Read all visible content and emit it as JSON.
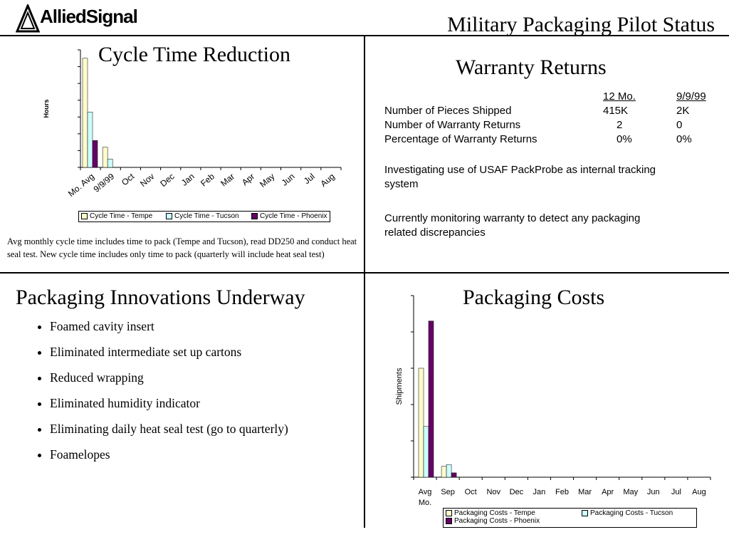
{
  "header": {
    "logo_text": "AlliedSignal",
    "title": "Military Packaging Pilot Status"
  },
  "colors": {
    "tempe": "#fffccc",
    "tucson": "#ccffff",
    "phoenix": "#660066",
    "rule": "#000000"
  },
  "cycle_panel": {
    "title": "Cycle Time Reduction",
    "note": "Avg monthly cycle time includes time to pack (Tempe and Tucson), read DD250 and conduct heat seal test.  New cycle time includes only time to pack (quarterly will include heat seal test)"
  },
  "warranty": {
    "title": "Warranty Returns",
    "col_headers": [
      "12 Mo.",
      "9/9/99"
    ],
    "rows": [
      {
        "label": "Number of Pieces Shipped",
        "v1": "415K",
        "v2": "2K"
      },
      {
        "label": "Number of Warranty Returns",
        "v1": "2",
        "v2": "0"
      },
      {
        "label": "Percentage of Warranty Returns",
        "v1": "0%",
        "v2": "0%"
      }
    ],
    "para1": "Investigating use of USAF PackProbe as internal tracking system",
    "para2": "Currently monitoring warranty to detect any packaging related discrepancies"
  },
  "innovations": {
    "title": "Packaging Innovations Underway",
    "items": [
      "Foamed cavity insert",
      "Eliminated intermediate set up cartons",
      "Reduced wrapping",
      "Eliminated humidity indicator",
      "Eliminating daily heat seal test (go to quarterly)",
      "Foamelopes"
    ]
  },
  "costs_panel": {
    "title": "Packaging Costs"
  },
  "chart_data": [
    {
      "type": "bar",
      "title": "",
      "ylabel": "Hours",
      "xlabel": "",
      "categories": [
        "Mo. Avg",
        "9/9/99",
        "Oct",
        "Nov",
        "Dec",
        "Jan",
        "Feb",
        "Mar",
        "Apr",
        "May",
        "Jun",
        "Jul",
        "Aug"
      ],
      "ylim": [
        0,
        7
      ],
      "y_ticks": 7,
      "tick_labels_shown": false,
      "legend_position": "bottom",
      "series": [
        {
          "name": "Cycle Time  - Tempe",
          "color": "#fffccc",
          "values": [
            6.5,
            1.2,
            null,
            null,
            null,
            null,
            null,
            null,
            null,
            null,
            null,
            null,
            null
          ]
        },
        {
          "name": "Cycle Time  - Tucson",
          "color": "#ccffff",
          "values": [
            3.3,
            0.5,
            null,
            null,
            null,
            null,
            null,
            null,
            null,
            null,
            null,
            null,
            null
          ]
        },
        {
          "name": "Cycle Time  - Phoenix",
          "color": "#660066",
          "values": [
            1.6,
            null,
            null,
            null,
            null,
            null,
            null,
            null,
            null,
            null,
            null,
            null,
            null
          ]
        }
      ]
    },
    {
      "type": "bar",
      "title": "",
      "ylabel": "Shipments",
      "xlabel": "",
      "categories": [
        "Avg Mo.",
        "Sep",
        "Oct",
        "Nov",
        "Dec",
        "Jan",
        "Feb",
        "Mar",
        "Apr",
        "May",
        "Jun",
        "Jul",
        "Aug"
      ],
      "ylim": [
        0,
        5
      ],
      "y_ticks": 5,
      "tick_labels_shown": false,
      "legend_position": "bottom",
      "series": [
        {
          "name": "Packaging Costs - Tempe",
          "color": "#fffccc",
          "values": [
            3.0,
            0.3,
            null,
            null,
            null,
            null,
            null,
            null,
            null,
            null,
            null,
            null,
            null
          ]
        },
        {
          "name": "Packaging Costs - Tucson",
          "color": "#ccffff",
          "values": [
            1.4,
            0.35,
            null,
            null,
            null,
            null,
            null,
            null,
            null,
            null,
            null,
            null,
            null
          ]
        },
        {
          "name": "Packaging Costs - Phoenix",
          "color": "#660066",
          "values": [
            4.3,
            0.12,
            null,
            null,
            null,
            null,
            null,
            null,
            null,
            null,
            null,
            null,
            null
          ]
        }
      ]
    }
  ]
}
